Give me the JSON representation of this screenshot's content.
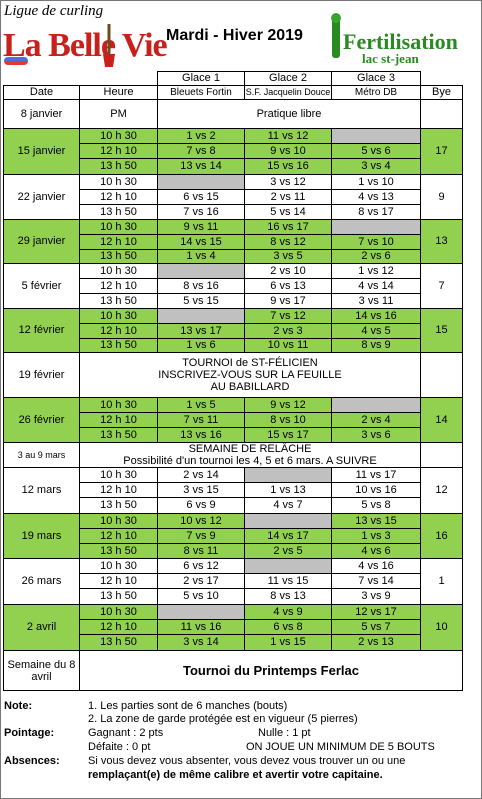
{
  "header": {
    "league_label": "Ligue de curling",
    "logo_text": "La Belle Vie",
    "season_title": "Mardi - Hiver 2019",
    "sponsor_line1": "Fertilisation",
    "sponsor_line2": "lac st-jean"
  },
  "columns": {
    "date": "Date",
    "heure": "Heure",
    "glace1": "Glace 1",
    "glace2": "Glace 2",
    "glace3": "Glace 3",
    "bye": "Bye",
    "glace1_team": "Bleuets Fortin",
    "glace2_team": "S.F. Jacquelin Douce",
    "glace3_team": "Métro DB"
  },
  "weeks": [
    {
      "date": "8 janvier",
      "special": "Pratique libre",
      "time_label": "PM"
    },
    {
      "date": "15 janvier",
      "bye": "17",
      "green": true,
      "rows": [
        {
          "time": "10 h 30",
          "g1": "1 vs 2",
          "g2": "11 vs 12",
          "g3": ""
        },
        {
          "time": "12 h 10",
          "g1": "7 vs 8",
          "g2": "9 vs 10",
          "g3": "5 vs 6"
        },
        {
          "time": "13 h 50",
          "g1": "13 vs 14",
          "g2": "15 vs 16",
          "g3": "3 vs 4"
        }
      ]
    },
    {
      "date": "22 janvier",
      "bye": "9",
      "green": false,
      "rows": [
        {
          "time": "10 h 30",
          "g1": "",
          "g2": "3 vs 12",
          "g3": "1 vs 10"
        },
        {
          "time": "12 h 10",
          "g1": "6 vs 15",
          "g2": "2 vs 11",
          "g3": "4 vs 13"
        },
        {
          "time": "13 h 50",
          "g1": "7 vs 16",
          "g2": "5 vs 14",
          "g3": "8 vs 17"
        }
      ]
    },
    {
      "date": "29 janvier",
      "bye": "13",
      "green": true,
      "rows": [
        {
          "time": "10 h 30",
          "g1": "9 vs 11",
          "g2": "16 vs 17",
          "g3": ""
        },
        {
          "time": "12 h 10",
          "g1": "14 vs 15",
          "g2": "8 vs 12",
          "g3": "7 vs 10"
        },
        {
          "time": "13 h 50",
          "g1": "1 vs 4",
          "g2": "3 vs 5",
          "g3": "2 vs 6"
        }
      ]
    },
    {
      "date": "5 février",
      "bye": "7",
      "green": false,
      "rows": [
        {
          "time": "10 h 30",
          "g1": "",
          "g2": "2 vs 10",
          "g3": "1 vs 12"
        },
        {
          "time": "12 h 10",
          "g1": "8 vs 16",
          "g2": "6 vs 13",
          "g3": "4 vs 14"
        },
        {
          "time": "13 h 50",
          "g1": "5 vs 15",
          "g2": "9 vs 17",
          "g3": "3 vs 11"
        }
      ]
    },
    {
      "date": "12 février",
      "bye": "15",
      "green": true,
      "rows": [
        {
          "time": "10 h 30",
          "g1": "",
          "g2": "7 vs 12",
          "g3": "14 vs 16"
        },
        {
          "time": "12 h 10",
          "g1": "13 vs 17",
          "g2": "2 vs 3",
          "g3": "4 vs 5"
        },
        {
          "time": "13 h 50",
          "g1": "1 vs 6",
          "g2": "10 vs 11",
          "g3": "8 vs 9"
        }
      ]
    },
    {
      "date": "19 février",
      "special_lines": [
        "TOURNOI de ST-FÉLICIEN",
        "INSCRIVEZ-VOUS SUR LA FEUILLE",
        "AU BABILLARD"
      ]
    },
    {
      "date": "26 février",
      "bye": "14",
      "green": true,
      "rows": [
        {
          "time": "10 h 30",
          "g1": "1 vs 5",
          "g2": "9 vs 12",
          "g3": ""
        },
        {
          "time": "12 h 10",
          "g1": "7 vs 11",
          "g2": "8 vs 10",
          "g3": "2 vs 4"
        },
        {
          "time": "13 h 50",
          "g1": "13 vs 16",
          "g2": "15 vs 17",
          "g3": "3 vs 6"
        }
      ]
    },
    {
      "date": "3 au 9 mars",
      "special_lines": [
        "SEMAINE DE RELÂCHE",
        "Possibilité d'un tournoi les 4, 5 et 6 mars.  A SUIVRE"
      ]
    },
    {
      "date": "12 mars",
      "bye": "12",
      "green": false,
      "rows": [
        {
          "time": "10 h 30",
          "g1": "2 vs 14",
          "g2": "",
          "g3": "11 vs 17"
        },
        {
          "time": "12 h 10",
          "g1": "3 vs 15",
          "g2": "1 vs 13",
          "g3": "10 vs 16"
        },
        {
          "time": "13 h 50",
          "g1": "6 vs 9",
          "g2": "4 vs 7",
          "g3": "5 vs 8"
        }
      ]
    },
    {
      "date": "19 mars",
      "bye": "16",
      "green": true,
      "rows": [
        {
          "time": "10 h 30",
          "g1": "10 vs 12",
          "g2": "",
          "g3": "13 vs 15"
        },
        {
          "time": "12 h 10",
          "g1": "7 vs 9",
          "g2": "14 vs 17",
          "g3": "1 vs 3"
        },
        {
          "time": "13 h 50",
          "g1": "8 vs 11",
          "g2": "2 vs 5",
          "g3": "4 vs 6"
        }
      ]
    },
    {
      "date": "26 mars",
      "bye": "1",
      "green": false,
      "rows": [
        {
          "time": "10 h 30",
          "g1": "6 vs 12",
          "g2": "",
          "g3": "4 vs 16"
        },
        {
          "time": "12 h 10",
          "g1": "2 vs 17",
          "g2": "11 vs 15",
          "g3": "7 vs 14"
        },
        {
          "time": "13 h 50",
          "g1": "5 vs 10",
          "g2": "8 vs 13",
          "g3": "3 vs 9"
        }
      ]
    },
    {
      "date": "2 avril",
      "bye": "10",
      "green": true,
      "rows": [
        {
          "time": "10 h 30",
          "g1": "",
          "g2": "4 vs 9",
          "g3": "12 vs 17"
        },
        {
          "time": "12 h 10",
          "g1": "11 vs 16",
          "g2": "6 vs 8",
          "g3": "5 vs 7"
        },
        {
          "time": "13 h 50",
          "g1": "3 vs 14",
          "g2": "1 vs 15",
          "g3": "2 vs 13"
        }
      ]
    },
    {
      "date_lines": [
        "Semaine du 8",
        "avril"
      ],
      "special": "Tournoi du Printemps Ferlac"
    }
  ],
  "notes": {
    "note_label": "Note:",
    "note1": "1.  Les parties sont de 6 manches (bouts)",
    "note2": "2.  La zone de garde protégée est en vigueur (5 pierres)",
    "pointage_label": "Pointage:",
    "gagnant": "Gagnant : 2 pts",
    "nulle": "Nulle : 1 pt",
    "defaite": "Défaite : 0 pt",
    "minimum": "ON JOUE UN MINIMUM DE 5 BOUTS",
    "absences_label": "Absences:",
    "absences1": "Si vous devez vous absenter, vous devez vous trouver un ou une",
    "absences2": "remplaçant(e) de même calibre et avertir votre capitaine."
  }
}
